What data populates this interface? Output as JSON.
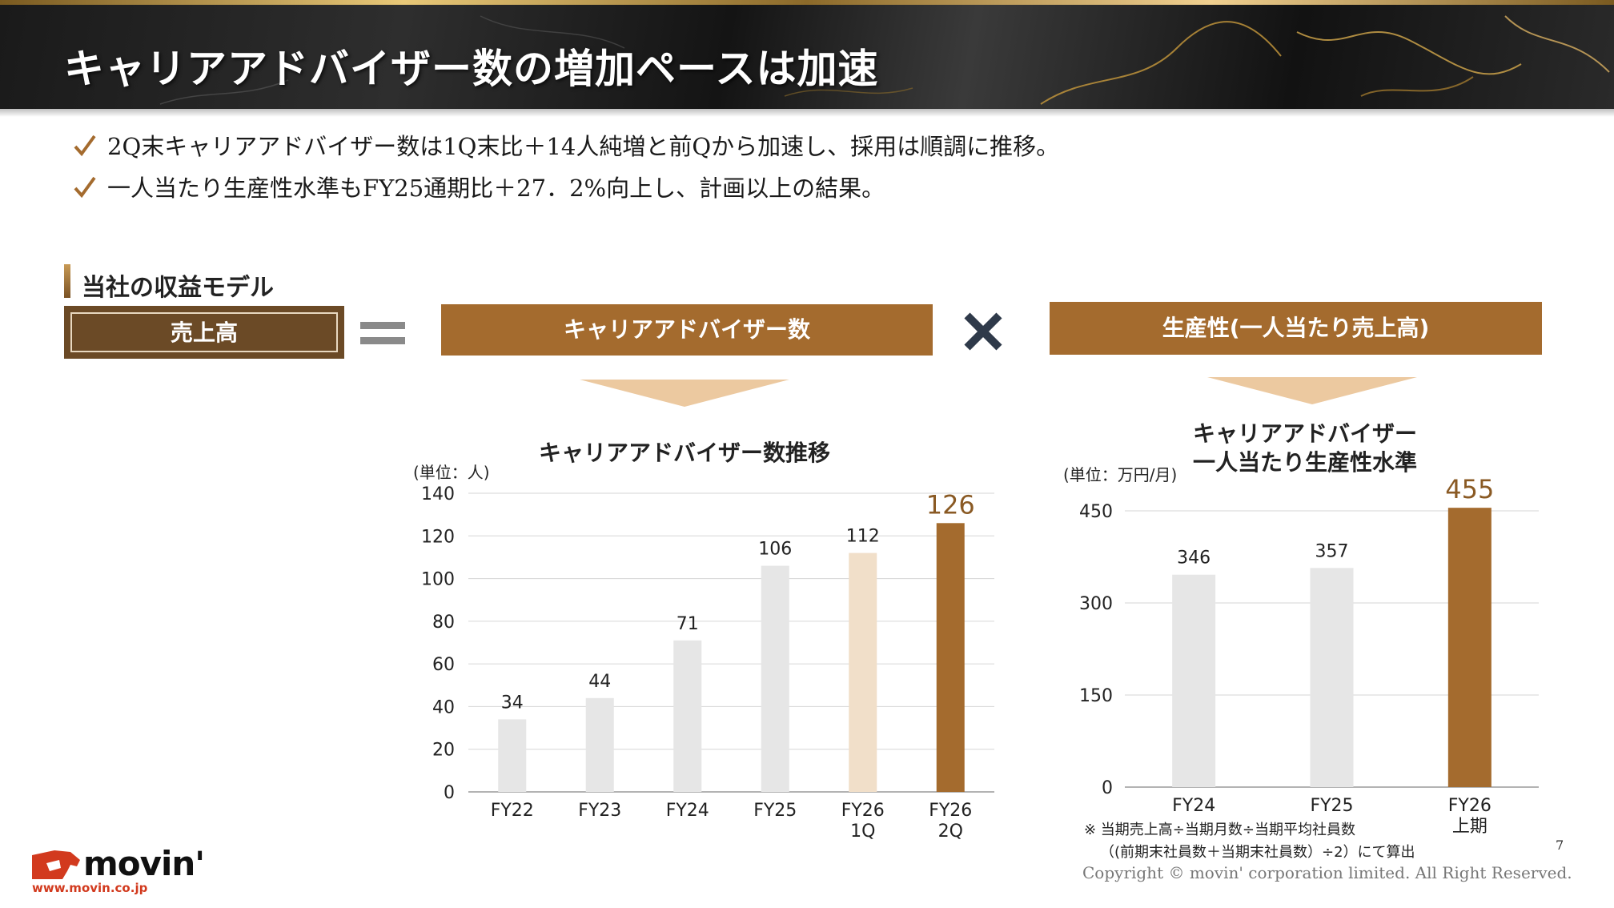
{
  "header": {
    "title": "キャリアアドバイザー数の増加ペースは加速",
    "gold": "#d9b062"
  },
  "bullets": [
    "2Q末キャリアアドバイザー数は1Q末比＋14人純増と前Qから加速し、採用は順調に推移。",
    "一人当たり生産性水準もFY25通期比＋27．2%向上し、計画以上の結果。"
  ],
  "section": {
    "label": "当社の収益モデル"
  },
  "formula": {
    "sales": "売上高",
    "advisors": "キャリアアドバイザー数",
    "productivity": "生産性(一人当たり売上高)",
    "brown_dark": "#6b4a26",
    "brown": "#a46b2e"
  },
  "chart_titles": {
    "left": "キャリアアドバイザー数推移",
    "left_unit": "(単位：人)",
    "right_line1": "キャリアアドバイザー",
    "right_line2": "一人当たり生産性水準",
    "right_unit": "(単位：万円/月)"
  },
  "chart_data": [
    {
      "type": "bar",
      "title": "キャリアアドバイザー数推移",
      "ylim": [
        0,
        140
      ],
      "yticks": [
        0,
        20,
        40,
        60,
        80,
        100,
        120,
        140
      ],
      "grid": true,
      "categories": [
        [
          "FY22"
        ],
        [
          "FY23"
        ],
        [
          "FY24"
        ],
        [
          "FY25"
        ],
        [
          "FY26",
          "1Q"
        ],
        [
          "FY26",
          "2Q"
        ]
      ],
      "values": [
        34,
        44,
        71,
        106,
        112,
        126
      ],
      "labels": [
        "34",
        "44",
        "71",
        "106",
        "112",
        "126"
      ],
      "colors": [
        "#e6e6e6",
        "#e6e6e6",
        "#e6e6e6",
        "#e6e6e6",
        "#f1dfc9",
        "#a46b2e"
      ],
      "highlight_color": "#8a5a24"
    },
    {
      "type": "bar",
      "title": "キャリアアドバイザー 一人当たり生産性水準",
      "ylim": [
        0,
        450
      ],
      "yticks": [
        0,
        150,
        300,
        450
      ],
      "grid": true,
      "categories": [
        [
          "FY24"
        ],
        [
          "FY25"
        ],
        [
          "FY26",
          "上期"
        ]
      ],
      "values": [
        346,
        357,
        455
      ],
      "labels": [
        "346",
        "357",
        "455"
      ],
      "colors": [
        "#e6e6e6",
        "#e6e6e6",
        "#a46b2e"
      ],
      "highlight_color": "#8a5a24"
    }
  ],
  "footnote": {
    "line1": "※ 当期売上高÷当期月数÷当期平均社員数",
    "line2": "（(前期末社員数＋当期末社員数）÷2）にて算出"
  },
  "page_number": "7",
  "copyright": "Copyright © movin' corporation limited. All Right Reserved.",
  "logo": {
    "name": "movin'",
    "url": "www.movin.co.jp"
  }
}
